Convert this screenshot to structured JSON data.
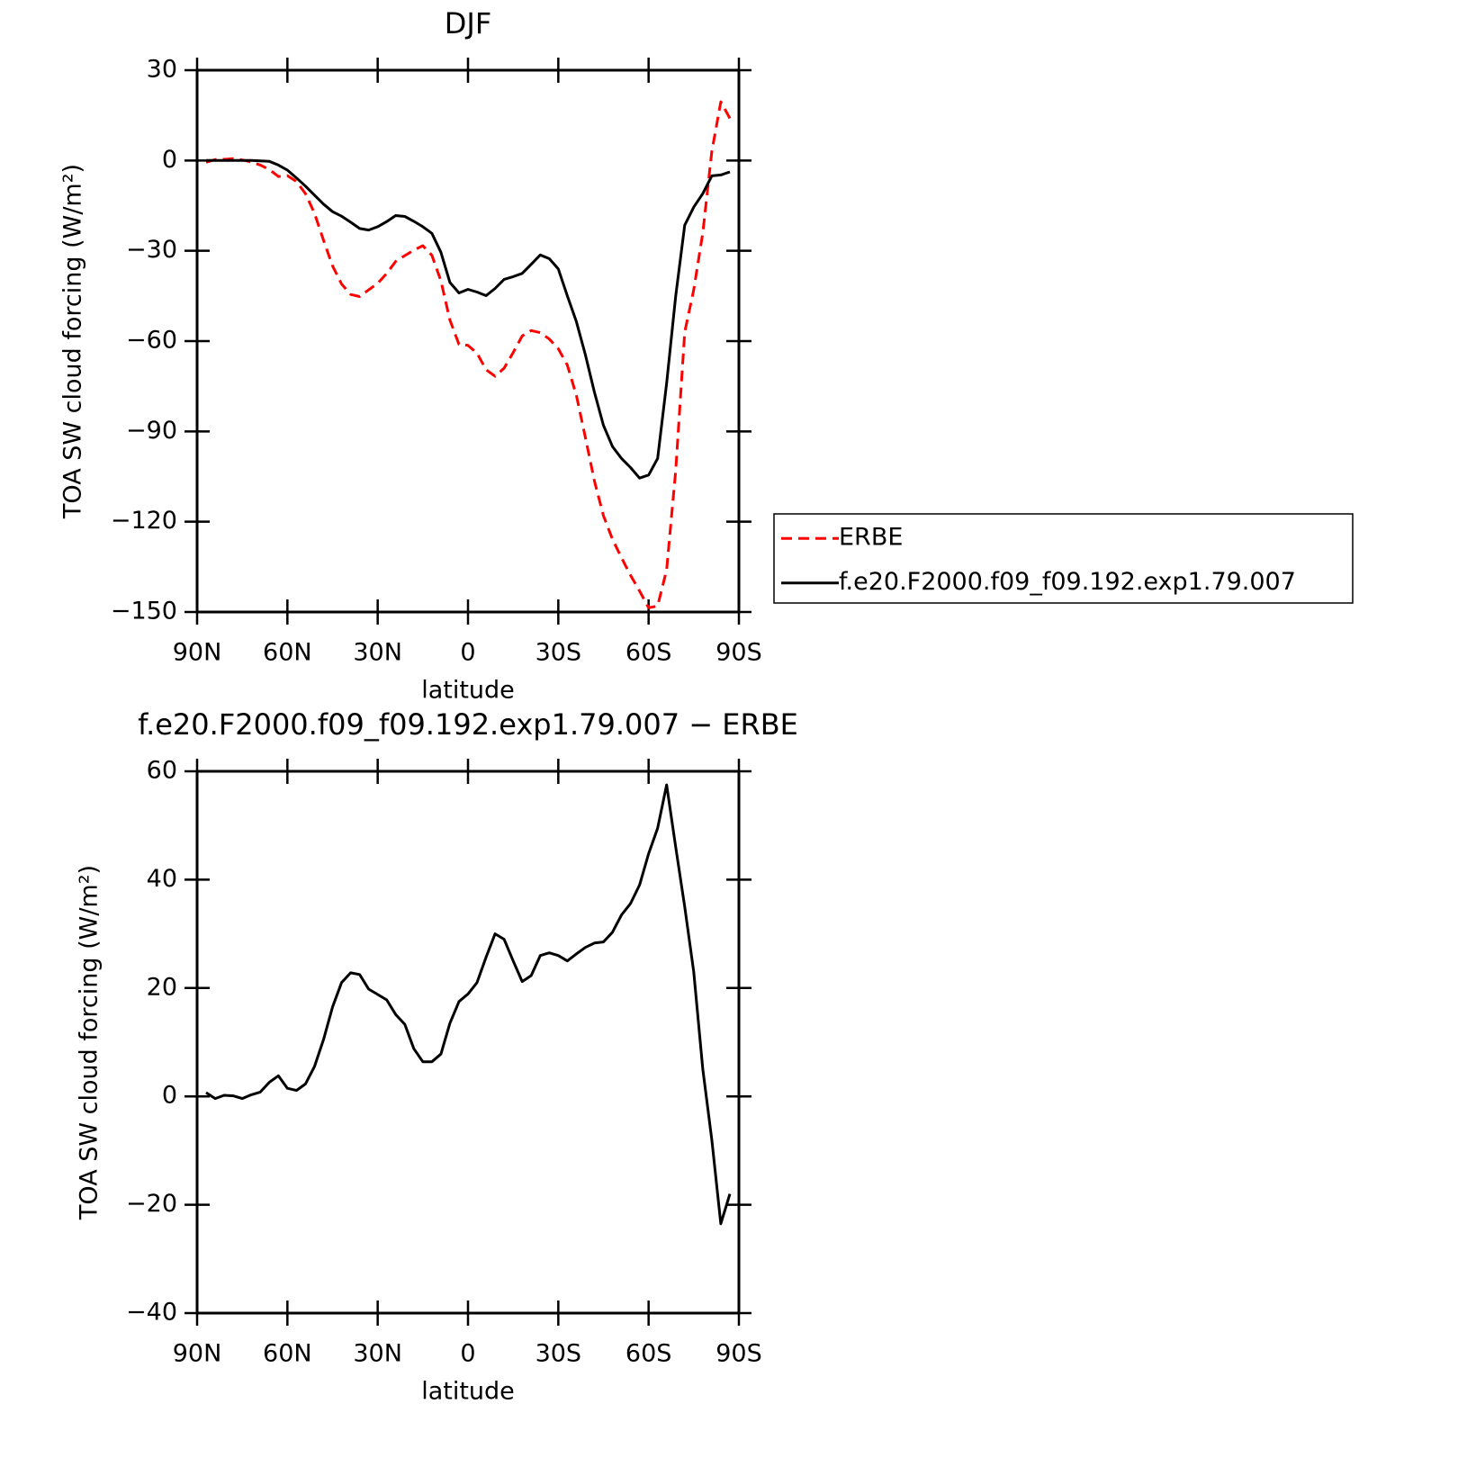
{
  "chart_data": [
    {
      "type": "line",
      "title": "DJF",
      "xlabel": "latitude",
      "ylabel": "TOA SW cloud forcing (W/m²)",
      "x": [
        87,
        84,
        81,
        78,
        75,
        72,
        69,
        66,
        63,
        60,
        57,
        54,
        51,
        48,
        45,
        42,
        39,
        36,
        33,
        30,
        27,
        24,
        21,
        18,
        15,
        12,
        9,
        6,
        3,
        0,
        -3,
        -6,
        -9,
        -12,
        -15,
        -18,
        -21,
        -24,
        -27,
        -30,
        -33,
        -36,
        -39,
        -42,
        -45,
        -48,
        -51,
        -54,
        -57,
        -60,
        -63,
        -66,
        -69,
        -72,
        -75,
        -78,
        -81,
        -84,
        -87
      ],
      "xlim": [
        90,
        -90
      ],
      "xticks": [
        {
          "value": 90,
          "label": "90N"
        },
        {
          "value": 60,
          "label": "60N"
        },
        {
          "value": 30,
          "label": "30N"
        },
        0,
        {
          "value": -30,
          "label": "30S"
        },
        {
          "value": -60,
          "label": "60S"
        },
        {
          "value": -90,
          "label": "90S"
        }
      ],
      "ylim": [
        -150,
        30
      ],
      "yticks": [
        30,
        0,
        {
          "value": -30,
          "label": "−30"
        },
        {
          "value": -60,
          "label": "−60"
        },
        {
          "value": -90,
          "label": "−90"
        },
        {
          "value": -120,
          "label": "−120"
        },
        {
          "value": -150,
          "label": "−150"
        }
      ],
      "legend": "outside-right",
      "series": [
        {
          "name": "ERBE",
          "color": "#ff0000",
          "dashed": true,
          "values": [
            -0.6,
            0.3,
            0.4,
            0.6,
            0.2,
            -0.5,
            -1.5,
            -3,
            -5.3,
            -5,
            -7,
            -11,
            -17.5,
            -26.5,
            -35,
            -41,
            -44.5,
            -45.2,
            -43,
            -40.8,
            -37.5,
            -33.5,
            -31.6,
            -29.8,
            -28.3,
            -31.5,
            -40,
            -53,
            -61.1,
            -61.4,
            -64,
            -69.5,
            -71.7,
            -69,
            -63.8,
            -58.3,
            -56.5,
            -57.2,
            -59.3,
            -62.5,
            -68,
            -78,
            -92,
            -106.5,
            -118,
            -125.8,
            -132,
            -137.8,
            -143,
            -148.6,
            -148,
            -136,
            -103,
            -57,
            -43,
            -24,
            3,
            19.5,
            14
          ]
        },
        {
          "name": "f.e20.F2000.f09_f09.192.exp1.79.007",
          "color": "#000000",
          "dashed": false,
          "values": [
            0,
            0,
            0,
            0,
            0,
            0,
            -0.1,
            -0.3,
            -1.5,
            -3.2,
            -5.8,
            -8.5,
            -11.5,
            -14.5,
            -17,
            -18.5,
            -20.5,
            -22.6,
            -23.1,
            -22,
            -20.3,
            -18.3,
            -18.6,
            -20.2,
            -22,
            -24.2,
            -30.5,
            -40.5,
            -44,
            -42.8,
            -43.7,
            -44.9,
            -42.5,
            -39.5,
            -38.6,
            -37.5,
            -34.5,
            -31.4,
            -32.6,
            -36,
            -45,
            -53.5,
            -64.5,
            -77,
            -88,
            -95,
            -99,
            -102,
            -105.5,
            -104.5,
            -99,
            -74,
            -45,
            -21.5,
            -15.5,
            -11,
            -5.1,
            -4.8,
            -3.8
          ]
        }
      ]
    },
    {
      "type": "line",
      "title": "f.e20.F2000.f09_f09.192.exp1.79.007 − ERBE",
      "xlabel": "latitude",
      "ylabel": "TOA SW cloud forcing (W/m²)",
      "x": [
        87,
        84,
        81,
        78,
        75,
        72,
        69,
        66,
        63,
        60,
        57,
        54,
        51,
        48,
        45,
        42,
        39,
        36,
        33,
        30,
        27,
        24,
        21,
        18,
        15,
        12,
        9,
        6,
        3,
        0,
        -3,
        -6,
        -9,
        -12,
        -15,
        -18,
        -21,
        -24,
        -27,
        -30,
        -33,
        -36,
        -39,
        -42,
        -45,
        -48,
        -51,
        -54,
        -57,
        -60,
        -63,
        -66,
        -69,
        -72,
        -75,
        -78,
        -81,
        -84,
        -87
      ],
      "xlim": [
        90,
        -90
      ],
      "xticks": [
        {
          "value": 90,
          "label": "90N"
        },
        {
          "value": 60,
          "label": "60N"
        },
        {
          "value": 30,
          "label": "30N"
        },
        0,
        {
          "value": -30,
          "label": "30S"
        },
        {
          "value": -60,
          "label": "60S"
        },
        {
          "value": -90,
          "label": "90S"
        }
      ],
      "ylim": [
        -40,
        60
      ],
      "yticks": [
        60,
        40,
        20,
        0,
        {
          "value": -20,
          "label": "−20"
        },
        {
          "value": -40,
          "label": "−40"
        }
      ],
      "color": "#000000",
      "values": [
        0.7,
        -0.4,
        0.2,
        0.1,
        -0.4,
        0.3,
        0.8,
        2.6,
        3.8,
        1.5,
        1.1,
        2.3,
        5.5,
        10.5,
        16.5,
        21,
        22.8,
        22.5,
        19.8,
        18.8,
        17.8,
        15.1,
        13.3,
        8.8,
        6.4,
        6.4,
        7.8,
        13.5,
        17.5,
        18.9,
        21,
        25.7,
        30,
        29,
        25,
        21.2,
        22.3,
        26,
        26.5,
        26,
        25,
        26.3,
        27.5,
        28.3,
        28.5,
        30.3,
        33.5,
        35.6,
        39,
        44.8,
        49.5,
        57.5,
        46,
        35,
        23,
        5,
        -8,
        -23.5,
        -18
      ]
    }
  ]
}
